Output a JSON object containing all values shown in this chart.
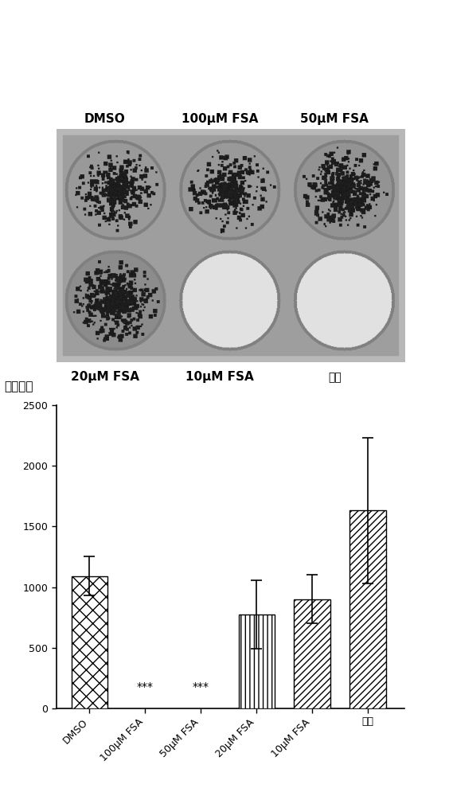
{
  "categories": [
    "DMSO",
    "100μM FSA",
    "50μM FSA",
    "20μM FSA",
    "10μM FSA",
    "空白"
  ],
  "values": [
    1090,
    0,
    0,
    775,
    900,
    1630
  ],
  "errors": [
    160,
    0,
    0,
    280,
    200,
    600
  ],
  "ylabel": "克隆数量",
  "ylim": [
    0,
    2500
  ],
  "yticks": [
    0,
    500,
    1000,
    1500,
    2000,
    2500
  ],
  "significance": [
    null,
    "***",
    "***",
    null,
    null,
    null
  ],
  "hatch_patterns": [
    "xx",
    "",
    "",
    "|||",
    "////",
    "////"
  ],
  "top_labels": [
    "DMSO",
    "100μM FSA",
    "50μM FSA"
  ],
  "bottom_labels": [
    "20μM FSA",
    "10μM FSA",
    "空白"
  ],
  "bar_width": 0.65,
  "fig_width": 5.64,
  "fig_height": 10.0,
  "label_fontsize": 11,
  "tick_fontsize": 9,
  "ylabel_fontsize": 11
}
